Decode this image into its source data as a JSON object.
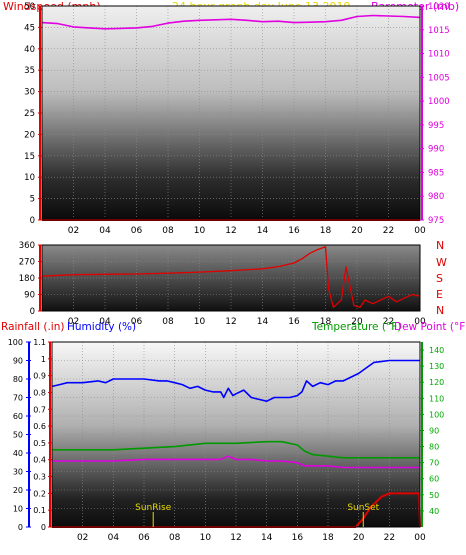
{
  "header": {
    "left": "Windspeed (mph)",
    "center": "24 hour graph day    June 13,2019",
    "right": "Barometer (mb)"
  },
  "colors": {
    "red": "#e00000",
    "magenta": "#e000e0",
    "blue": "#0000ff",
    "green": "#009900",
    "tick": "#000000",
    "title": "#e8d800",
    "temp_tick": "#00aa00"
  },
  "chart_data": [
    {
      "type": "line",
      "x_ticks": [
        "02",
        "04",
        "06",
        "08",
        "10",
        "12",
        "14",
        "16",
        "18",
        "20",
        "22",
        "00"
      ],
      "axes": {
        "left": {
          "label": "Windspeed (mph)",
          "ylim": [
            0,
            50
          ],
          "ticks": [
            0,
            5,
            10,
            15,
            20,
            25,
            30,
            35,
            40,
            45,
            50
          ]
        },
        "right": {
          "label": "Barometer (mb)",
          "ylim": [
            975,
            1020
          ],
          "ticks": [
            975,
            980,
            985,
            990,
            995,
            1000,
            1005,
            1010,
            1015,
            1020
          ]
        }
      },
      "series": [
        {
          "name": "Windspeed",
          "axis": "left",
          "color": "#e00000",
          "x": [
            0,
            24
          ],
          "y": [
            0,
            0
          ]
        },
        {
          "name": "Barometer",
          "axis": "right",
          "color": "#e000e0",
          "x": [
            0,
            1,
            2,
            3,
            4,
            5,
            6,
            7,
            8,
            9,
            10,
            11,
            12,
            13,
            14,
            15,
            16,
            17,
            18,
            19,
            20,
            21,
            22,
            23,
            24
          ],
          "y": [
            1016.5,
            1016.3,
            1015.6,
            1015.4,
            1015.2,
            1015.3,
            1015.4,
            1015.7,
            1016.4,
            1016.8,
            1017.0,
            1017.1,
            1017.2,
            1017.0,
            1016.7,
            1016.8,
            1016.5,
            1016.6,
            1016.7,
            1017.0,
            1017.8,
            1018.0,
            1017.9,
            1017.8,
            1017.6
          ]
        }
      ]
    },
    {
      "type": "line",
      "x_ticks": [
        "02",
        "04",
        "06",
        "08",
        "10",
        "12",
        "14",
        "16",
        "18",
        "20",
        "22",
        "00"
      ],
      "axes": {
        "left": {
          "label": "",
          "ylim": [
            0,
            360
          ],
          "ticks": [
            0,
            90,
            180,
            270,
            360
          ]
        },
        "right": {
          "label": "",
          "ticks": [
            "N",
            "W",
            "S",
            "E",
            "N"
          ]
        }
      },
      "series": [
        {
          "name": "Wind direction",
          "axis": "left",
          "color": "#e00000",
          "x": [
            0,
            2,
            4,
            6,
            8,
            10,
            12,
            14,
            15,
            16,
            16.5,
            17,
            17.5,
            18,
            18.2,
            18.5,
            19,
            19.3,
            19.8,
            20.2,
            20.5,
            21,
            21.5,
            22,
            22.5,
            23,
            23.5,
            24
          ],
          "y": [
            190,
            198,
            200,
            202,
            206,
            212,
            220,
            230,
            242,
            262,
            285,
            315,
            335,
            350,
            120,
            20,
            60,
            240,
            30,
            20,
            60,
            40,
            60,
            80,
            50,
            70,
            90,
            80
          ]
        }
      ]
    },
    {
      "type": "line",
      "x_ticks": [
        "02",
        "04",
        "06",
        "08",
        "10",
        "12",
        "14",
        "16",
        "18",
        "20",
        "22",
        "00"
      ],
      "axes": {
        "rainfall": {
          "label": "Rainfall (.in)",
          "ylim": [
            0,
            1.1
          ],
          "ticks": [
            0,
            0.1,
            0.2,
            0.3,
            0.4,
            0.5,
            0.6,
            0.7,
            0.8,
            0.9,
            1,
            1.1
          ]
        },
        "humidity": {
          "label": "Humidity (%)",
          "ylim": [
            0,
            100
          ],
          "ticks": [
            0,
            10,
            20,
            30,
            40,
            50,
            60,
            70,
            80,
            90,
            100
          ]
        },
        "temperature": {
          "label": "Temperature (°F)",
          "label2": "Dew Point (°F)",
          "ylim": [
            30,
            145
          ],
          "ticks": [
            40,
            50,
            60,
            70,
            80,
            90,
            100,
            110,
            120,
            130,
            140
          ]
        }
      },
      "annotations": [
        {
          "text": "SunRise",
          "x": 6.6
        },
        {
          "text": "SunSet",
          "x": 20.3
        }
      ],
      "series": [
        {
          "name": "Humidity",
          "axis": "humidity",
          "color": "#0000ff",
          "x": [
            0,
            0.5,
            1,
            2,
            3,
            3.5,
            4,
            5,
            6,
            7,
            7.5,
            8,
            8.5,
            9,
            9.5,
            10,
            10.5,
            11,
            11.2,
            11.5,
            11.8,
            12,
            12.5,
            13,
            13.5,
            14,
            14.5,
            15,
            15.5,
            16,
            16.3,
            16.6,
            17,
            17.5,
            18,
            18.5,
            19,
            19.5,
            20,
            20.5,
            21,
            22,
            23,
            24
          ],
          "y": [
            76,
            77,
            78,
            78,
            79,
            78,
            80,
            80,
            80,
            79,
            79,
            78,
            77,
            75,
            76,
            74,
            73,
            73,
            70,
            75,
            71,
            72,
            74,
            70,
            69,
            68,
            70,
            70,
            70,
            71,
            73,
            79,
            76,
            78,
            77,
            79,
            79,
            81,
            83,
            86,
            89,
            90,
            90,
            90
          ]
        },
        {
          "name": "Rainfall",
          "axis": "rainfall",
          "color": "#e00000",
          "x": [
            0,
            19.8,
            20.3,
            20.8,
            21.5,
            22,
            23,
            23.95,
            24
          ],
          "y": [
            0,
            0,
            0.05,
            0.12,
            0.18,
            0.2,
            0.2,
            0.2,
            0
          ]
        },
        {
          "name": "Temperature",
          "axis": "temperature",
          "color": "#009900",
          "x": [
            0,
            2,
            4,
            6,
            8,
            10,
            12,
            14,
            15,
            16,
            16.5,
            17,
            18,
            19,
            20,
            22,
            24
          ],
          "y": [
            78,
            78,
            78,
            79,
            80,
            82,
            82,
            83,
            83,
            81,
            77,
            75,
            74,
            73,
            73,
            73,
            73
          ]
        },
        {
          "name": "Dew Point",
          "axis": "temperature",
          "color": "#e000e0",
          "x": [
            0,
            2,
            4,
            6,
            8,
            10,
            11,
            11.5,
            12,
            13,
            14,
            15,
            16,
            16.5,
            17,
            18,
            19,
            20,
            22,
            24
          ],
          "y": [
            71,
            71,
            71,
            72,
            72,
            72,
            72,
            74,
            72,
            72,
            71,
            71,
            70,
            68,
            68,
            68,
            67,
            67,
            67,
            67
          ]
        }
      ]
    }
  ]
}
